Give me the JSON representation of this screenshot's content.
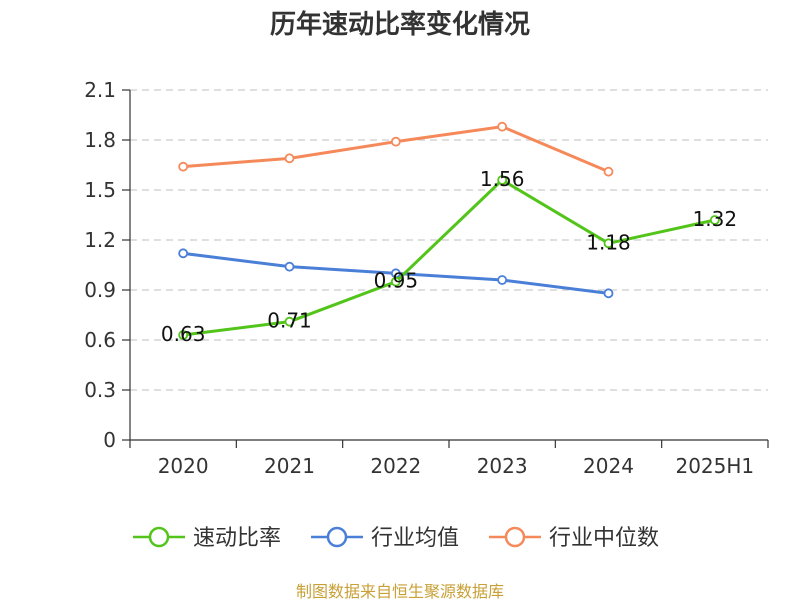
{
  "chart_data": {
    "type": "line",
    "title": "历年速动比率变化情况",
    "categories": [
      "2020",
      "2021",
      "2022",
      "2023",
      "2024",
      "2025H1"
    ],
    "ylim": [
      0,
      2.1
    ],
    "yticks": [
      "0",
      "0.3",
      "0.6",
      "0.9",
      "1.2",
      "1.5",
      "1.8",
      "2.1"
    ],
    "grid": true,
    "legend_position": "bottom",
    "series": [
      {
        "name": "速动比率",
        "color": "#52c41a",
        "values": [
          0.63,
          0.71,
          0.95,
          1.56,
          1.18,
          1.32
        ],
        "labels": [
          "0.63",
          "0.71",
          "0.95",
          "1.56",
          "1.18",
          "1.32"
        ]
      },
      {
        "name": "行业均值",
        "color": "#4a7fd8",
        "values": [
          1.12,
          1.04,
          1.0,
          0.96,
          0.88,
          null
        ]
      },
      {
        "name": "行业中位数",
        "color": "#f5895a",
        "values": [
          1.64,
          1.69,
          1.79,
          1.88,
          1.61,
          null
        ]
      }
    ]
  },
  "source_note": "制图数据来自恒生聚源数据库"
}
